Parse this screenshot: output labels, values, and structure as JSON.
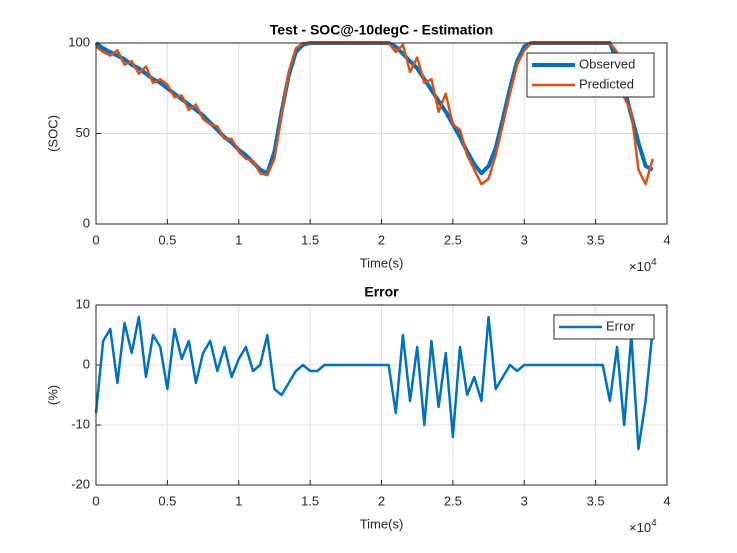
{
  "chart_data": [
    {
      "type": "line",
      "title": "Test - SOC@-10degC - Estimation",
      "xlabel": "Time(s)",
      "ylabel": "(SOC)",
      "x_multiplier": {
        "base": "×10",
        "power": "4"
      },
      "x": [
        0,
        0.05,
        0.1,
        0.15,
        0.2,
        0.25,
        0.3,
        0.35,
        0.4,
        0.45,
        0.5,
        0.55,
        0.6,
        0.65,
        0.7,
        0.75,
        0.8,
        0.85,
        0.9,
        0.95,
        1,
        1.05,
        1.1,
        1.15,
        1.2,
        1.25,
        1.3,
        1.35,
        1.4,
        1.45,
        1.5,
        1.55,
        1.6,
        1.65,
        1.7,
        1.75,
        1.8,
        1.85,
        1.9,
        1.95,
        2,
        2.05,
        2.1,
        2.15,
        2.2,
        2.25,
        2.3,
        2.35,
        2.4,
        2.45,
        2.5,
        2.55,
        2.6,
        2.65,
        2.7,
        2.75,
        2.8,
        2.85,
        2.9,
        2.95,
        3,
        3.05,
        3.1,
        3.15,
        3.2,
        3.25,
        3.3,
        3.35,
        3.4,
        3.45,
        3.5,
        3.55,
        3.6,
        3.65,
        3.7,
        3.75,
        3.8,
        3.85,
        3.9
      ],
      "series": [
        {
          "name": "Observed",
          "color": "#0072bd",
          "width": 4,
          "values": [
            100,
            97,
            95,
            93,
            91,
            88,
            86,
            83,
            80,
            78,
            75,
            72,
            69,
            66,
            63,
            60,
            56,
            52,
            48,
            45,
            41,
            38,
            34,
            30,
            28,
            40,
            62,
            82,
            95,
            99,
            100,
            100,
            100,
            100,
            100,
            100,
            100,
            100,
            100,
            100,
            100,
            100,
            98,
            94,
            90,
            86,
            80,
            74,
            68,
            62,
            55,
            48,
            40,
            33,
            28,
            32,
            42,
            58,
            75,
            90,
            98,
            100,
            100,
            100,
            100,
            100,
            100,
            100,
            100,
            100,
            100,
            100,
            100,
            90,
            75,
            60,
            45,
            32,
            30
          ]
        },
        {
          "name": "Predicted",
          "color": "#d95319",
          "width": 2.5,
          "values": [
            98,
            95,
            93,
            96,
            88,
            90,
            83,
            87,
            78,
            80,
            77,
            70,
            71,
            63,
            66,
            58,
            55,
            54,
            47,
            47,
            40,
            36,
            35,
            28,
            27,
            36,
            60,
            84,
            97,
            100,
            100,
            100,
            100,
            100,
            100,
            100,
            100,
            100,
            100,
            100,
            100,
            100,
            95,
            99,
            84,
            92,
            78,
            80,
            62,
            72,
            55,
            52,
            38,
            30,
            22,
            25,
            38,
            55,
            72,
            88,
            96,
            100,
            100,
            100,
            100,
            100,
            100,
            100,
            100,
            100,
            100,
            100,
            100,
            95,
            70,
            62,
            30,
            22,
            36
          ]
        }
      ],
      "xlim": [
        0,
        4
      ],
      "xticks": [
        0,
        0.5,
        1,
        1.5,
        2,
        2.5,
        3,
        3.5,
        4
      ],
      "ylim": [
        0,
        100
      ],
      "yticks": [
        0,
        50,
        100
      ],
      "grid": true,
      "legend": "upper right"
    },
    {
      "type": "line",
      "title": "Error",
      "xlabel": "Time(s)",
      "ylabel": "(%)",
      "x_multiplier": {
        "base": "×10",
        "power": "4"
      },
      "x": [
        0,
        0.05,
        0.1,
        0.15,
        0.2,
        0.25,
        0.3,
        0.35,
        0.4,
        0.45,
        0.5,
        0.55,
        0.6,
        0.65,
        0.7,
        0.75,
        0.8,
        0.85,
        0.9,
        0.95,
        1,
        1.05,
        1.1,
        1.15,
        1.2,
        1.25,
        1.3,
        1.35,
        1.4,
        1.45,
        1.5,
        1.55,
        1.6,
        1.65,
        1.7,
        1.75,
        1.8,
        1.85,
        1.9,
        1.95,
        2,
        2.05,
        2.1,
        2.15,
        2.2,
        2.25,
        2.3,
        2.35,
        2.4,
        2.45,
        2.5,
        2.55,
        2.6,
        2.65,
        2.7,
        2.75,
        2.8,
        2.85,
        2.9,
        2.95,
        3,
        3.05,
        3.1,
        3.15,
        3.2,
        3.25,
        3.3,
        3.35,
        3.4,
        3.45,
        3.5,
        3.55,
        3.6,
        3.65,
        3.7,
        3.75,
        3.8,
        3.85,
        3.9
      ],
      "series": [
        {
          "name": "Error",
          "color": "#0072bd",
          "width": 2.5,
          "values": [
            -8,
            4,
            6,
            -3,
            7,
            2,
            8,
            -2,
            5,
            3,
            -4,
            6,
            1,
            4,
            -3,
            2,
            4,
            -1,
            3,
            -2,
            1,
            3,
            -1,
            0,
            5,
            -4,
            -5,
            -3,
            -1,
            0,
            -1,
            -1,
            0,
            0,
            0,
            0,
            0,
            0,
            0,
            0,
            0,
            0,
            -8,
            5,
            -6,
            3,
            -10,
            4,
            -7,
            2,
            -12,
            3,
            -5,
            -2,
            -6,
            8,
            -4,
            -2,
            0,
            -1,
            0,
            0,
            0,
            0,
            0,
            0,
            0,
            0,
            0,
            0,
            0,
            0,
            -6,
            3,
            -10,
            5,
            -14,
            -6,
            6
          ]
        }
      ],
      "xlim": [
        0,
        4
      ],
      "xticks": [
        0,
        0.5,
        1,
        1.5,
        2,
        2.5,
        3,
        3.5,
        4
      ],
      "ylim": [
        -20,
        10
      ],
      "yticks": [
        -20,
        -10,
        0,
        10
      ],
      "grid": true,
      "legend": "upper right"
    }
  ]
}
